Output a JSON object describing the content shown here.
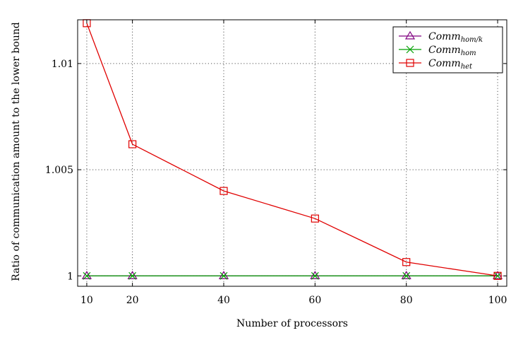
{
  "chart_data": {
    "type": "line",
    "xlabel": "Number of processors",
    "ylabel": "Ratio of communication amount to the lower bound",
    "xticks": [
      10,
      20,
      40,
      60,
      80,
      100
    ],
    "xtick_labels": [
      "10",
      "20",
      "40",
      "60",
      "80",
      "100"
    ],
    "yticks": [
      1,
      1.005,
      1.01
    ],
    "ytick_labels": [
      "1",
      "1.005",
      "1.01"
    ],
    "xlim": [
      8,
      102
    ],
    "ylim": [
      0.99951,
      1.01206
    ],
    "grid": true,
    "grid_style": "dotted",
    "legend_position": "top-right",
    "series": [
      {
        "name_main": "Comm",
        "name_sub": "hom/k",
        "color": "#800080",
        "marker": "triangle",
        "x": [
          10,
          20,
          40,
          60,
          80,
          100
        ],
        "y": [
          1,
          1,
          1,
          1,
          1,
          1
        ]
      },
      {
        "name_main": "Comm",
        "name_sub": "hom",
        "color": "#00a000",
        "marker": "x",
        "x": [
          10,
          20,
          40,
          60,
          80,
          100
        ],
        "y": [
          1,
          1,
          1,
          1,
          1,
          1
        ]
      },
      {
        "name_main": "Comm",
        "name_sub": "het",
        "color": "#e00000",
        "marker": "square",
        "x": [
          10,
          20,
          40,
          60,
          80,
          100
        ],
        "y": [
          1.0119,
          1.0062,
          1.004,
          1.0027,
          1.00065,
          1
        ]
      }
    ]
  }
}
